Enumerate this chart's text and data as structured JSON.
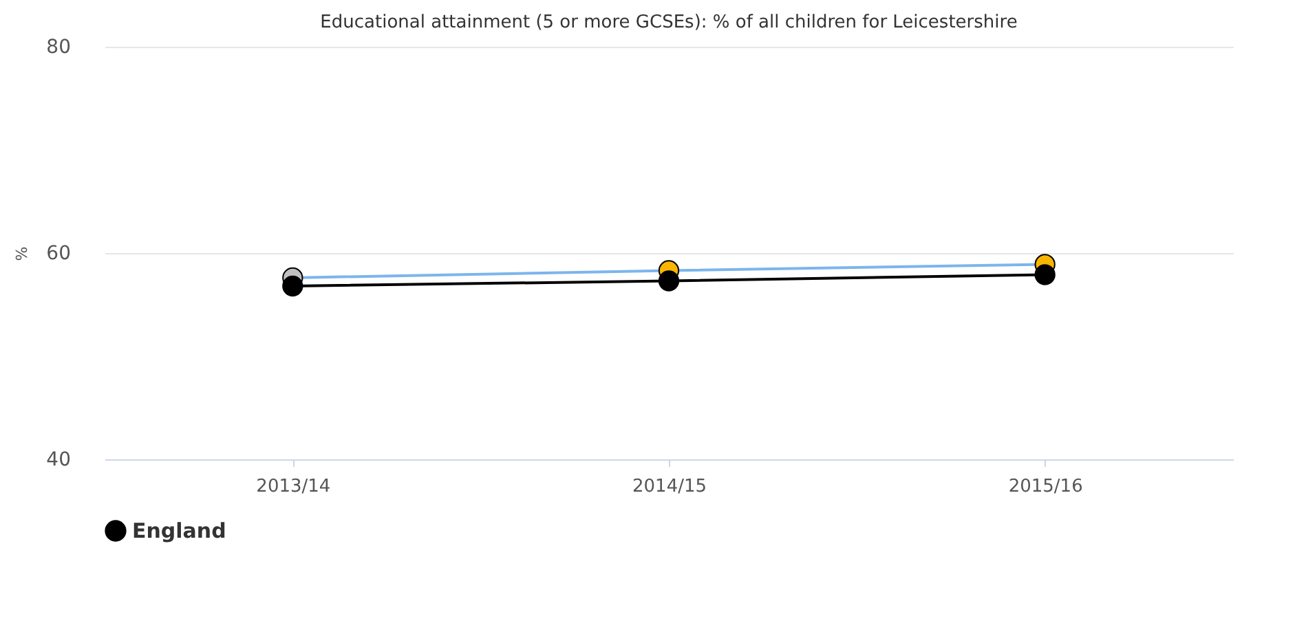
{
  "chart_data": {
    "type": "line",
    "title": "Educational attainment (5 or more GCSEs): % of all children for Leicestershire",
    "ylabel": "%",
    "categories": [
      "2013/14",
      "2014/15",
      "2015/16"
    ],
    "series": [
      {
        "name": "England",
        "color": "#000000",
        "values": [
          56.8,
          57.3,
          57.9
        ]
      },
      {
        "color": "#7cb5ec",
        "colors": [
          "#c0c0c0",
          "#f7b500",
          "#f7b500"
        ],
        "values": [
          57.6,
          58.3,
          58.9
        ]
      }
    ],
    "ylim": [
      40,
      80
    ],
    "yticks": [
      40,
      60,
      80
    ],
    "grid": "y",
    "legend": "bottom",
    "marker": "circle",
    "line_style": "solid"
  }
}
